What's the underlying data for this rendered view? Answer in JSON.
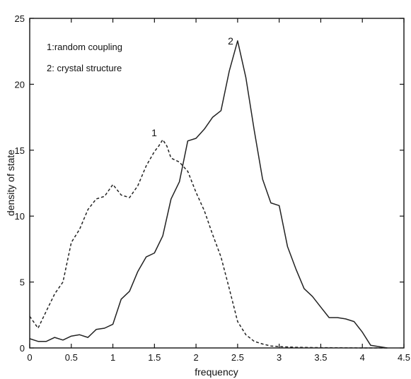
{
  "chart_data": {
    "type": "line",
    "title": "",
    "xlabel": "frequency",
    "ylabel": "density of state",
    "xlim": [
      0,
      4.5
    ],
    "ylim": [
      0,
      25
    ],
    "grid": false,
    "legend_placement": "top-left",
    "x_ticks": [
      "0",
      "0.5",
      "1",
      "1.5",
      "2",
      "2.5",
      "3",
      "3.5",
      "4",
      "4.5"
    ],
    "y_ticks": [
      "0",
      "5",
      "10",
      "15",
      "20",
      "25"
    ],
    "legend": [
      "1:random coupling",
      "2: crystal structure"
    ],
    "series": [
      {
        "name": "1",
        "label": "1",
        "style": "dashed",
        "color": "#222222",
        "x": [
          0,
          0.1,
          0.2,
          0.3,
          0.4,
          0.5,
          0.55,
          0.6,
          0.7,
          0.8,
          0.9,
          1.0,
          1.05,
          1.1,
          1.2,
          1.3,
          1.4,
          1.5,
          1.55,
          1.6,
          1.65,
          1.7,
          1.8,
          1.9,
          2.0,
          2.1,
          2.2,
          2.3,
          2.4,
          2.5,
          2.6,
          2.7,
          2.8,
          2.9,
          3.0,
          3.2,
          3.5,
          4.0,
          4.3
        ],
        "values": [
          2.4,
          1.5,
          2.8,
          4.1,
          5.0,
          8.0,
          8.5,
          9.0,
          10.5,
          11.3,
          11.5,
          12.4,
          12.0,
          11.6,
          11.4,
          12.3,
          13.8,
          14.9,
          15.3,
          15.8,
          15.3,
          14.4,
          14.1,
          13.4,
          11.8,
          10.4,
          8.6,
          6.9,
          4.5,
          2.0,
          1.0,
          0.5,
          0.3,
          0.15,
          0.1,
          0.05,
          0.02,
          0.0,
          0.0
        ]
      },
      {
        "name": "2",
        "label": "2",
        "style": "solid",
        "color": "#222222",
        "x": [
          0,
          0.1,
          0.2,
          0.3,
          0.4,
          0.5,
          0.6,
          0.7,
          0.8,
          0.9,
          1.0,
          1.1,
          1.2,
          1.3,
          1.4,
          1.5,
          1.6,
          1.7,
          1.8,
          1.9,
          2.0,
          2.1,
          2.2,
          2.3,
          2.4,
          2.5,
          2.6,
          2.7,
          2.8,
          2.9,
          3.0,
          3.1,
          3.2,
          3.3,
          3.4,
          3.5,
          3.6,
          3.7,
          3.8,
          3.9,
          4.0,
          4.1,
          4.2,
          4.3
        ],
        "values": [
          0.7,
          0.5,
          0.5,
          0.8,
          0.6,
          0.9,
          1.0,
          0.8,
          1.4,
          1.5,
          1.8,
          3.7,
          4.3,
          5.8,
          6.9,
          7.2,
          8.5,
          11.3,
          12.6,
          15.7,
          15.9,
          16.6,
          17.5,
          18.0,
          21.0,
          23.3,
          20.5,
          16.5,
          12.8,
          11.0,
          10.8,
          7.7,
          6.0,
          4.5,
          3.9,
          3.1,
          2.3,
          2.3,
          2.2,
          2.0,
          1.2,
          0.2,
          0.1,
          0.0
        ]
      }
    ]
  }
}
